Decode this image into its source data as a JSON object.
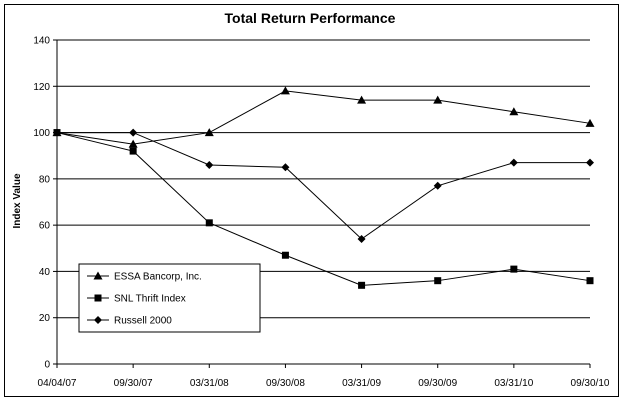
{
  "chart_data": {
    "type": "line",
    "title": "Total Return Performance",
    "xlabel": "",
    "ylabel": "Index Value",
    "categories": [
      "04/04/07",
      "09/30/07",
      "03/31/08",
      "09/30/08",
      "03/31/09",
      "09/30/09",
      "03/31/10",
      "09/30/10"
    ],
    "ylim": [
      0,
      140
    ],
    "yticks": [
      0,
      20,
      40,
      60,
      80,
      100,
      120,
      140
    ],
    "grid": "horizontal",
    "legend_position": "bottom-left",
    "series": [
      {
        "name": "ESSA Bancorp, Inc.",
        "marker": "triangle",
        "values": [
          100,
          95,
          100,
          118,
          114,
          114,
          109,
          104
        ]
      },
      {
        "name": "SNL Thrift Index",
        "marker": "square",
        "values": [
          100,
          92,
          61,
          47,
          34,
          36,
          41,
          36
        ]
      },
      {
        "name": "Russell 2000",
        "marker": "diamond",
        "values": [
          100,
          100,
          86,
          85,
          54,
          77,
          87,
          87
        ]
      }
    ],
    "line_color": "#000000"
  }
}
